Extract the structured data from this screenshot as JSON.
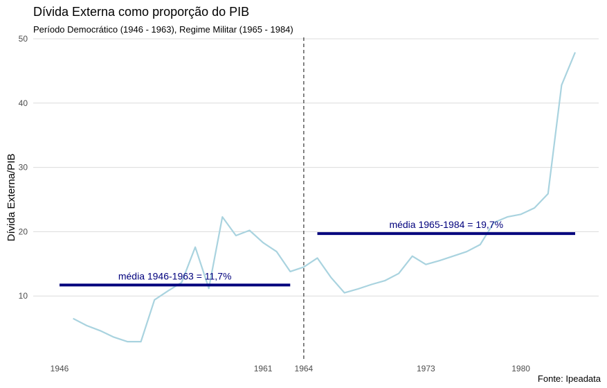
{
  "chart_data": {
    "type": "line",
    "title": "Dívida Externa como proporção do PIB",
    "subtitle": "Período Democrático (1946 - 1963), Regime Militar (1965 - 1984)",
    "ylabel": "Dívida Externa/PIB",
    "caption": "Fonte: Ipeadata",
    "xlim": [
      1946,
      1984
    ],
    "ylim": [
      0,
      50
    ],
    "x_ticks": [
      1946,
      1961,
      1964,
      1973,
      1980
    ],
    "y_ticks": [
      10,
      20,
      30,
      40,
      50
    ],
    "grid": "horizontal",
    "line_color": "#a9d3df",
    "series": [
      {
        "x": [
          1947,
          1948,
          1949,
          1950,
          1951,
          1952,
          1953,
          1954,
          1955,
          1956,
          1957,
          1958,
          1959,
          1960,
          1961,
          1962,
          1963,
          1964,
          1965,
          1966,
          1967,
          1968,
          1969,
          1970,
          1971,
          1972,
          1973,
          1974,
          1975,
          1976,
          1977,
          1978,
          1979,
          1980,
          1981,
          1982,
          1983,
          1984
        ],
        "values": [
          6.5,
          5.4,
          4.6,
          3.6,
          2.9,
          2.9,
          9.4,
          10.8,
          12.1,
          17.6,
          11.2,
          22.3,
          19.4,
          20.2,
          18.3,
          16.9,
          13.8,
          14.5,
          15.9,
          12.9,
          10.5,
          11.1,
          11.8,
          12.4,
          13.5,
          16.2,
          14.9,
          15.5,
          16.2,
          16.9,
          18.0,
          21.4,
          22.3,
          22.7,
          23.7,
          25.9,
          42.8,
          47.9
        ]
      }
    ],
    "vline": {
      "x": 1964,
      "style": "dashed",
      "color": "#333333"
    },
    "hsegments": [
      {
        "x0": 1946,
        "x1": 1963,
        "y": 11.7,
        "label": "média 1946-1963 = 11,7%",
        "color": "#00007d"
      },
      {
        "x0": 1965,
        "x1": 1984,
        "y": 19.7,
        "label": "média 1965-1984 = 19,7%",
        "color": "#00007d"
      }
    ]
  }
}
